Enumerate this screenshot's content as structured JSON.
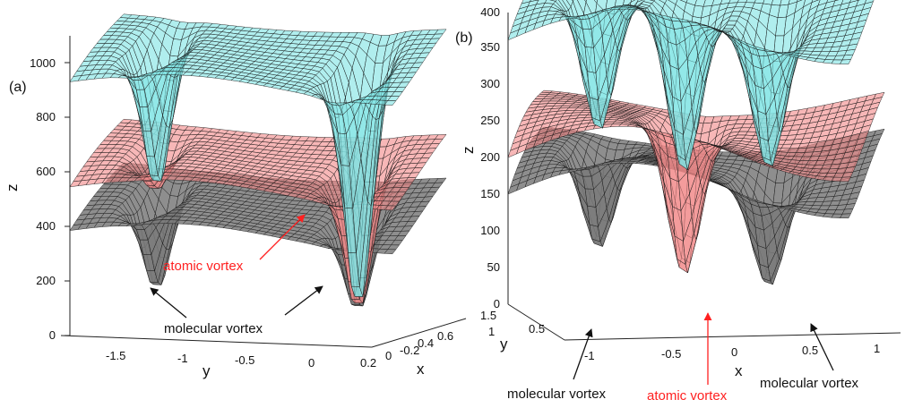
{
  "chart_data": [
    {
      "type": "surface",
      "panel_label": "(a)",
      "zlabel": "z",
      "ylabel": "y",
      "xlabel": "x",
      "z_ticks": [
        "0",
        "200",
        "400",
        "600",
        "800",
        "1000"
      ],
      "y_ticks": [
        "-1.5",
        "-1",
        "-0.5",
        "0"
      ],
      "x_ticks": [
        "0.2",
        "0",
        "-0.2",
        "0.4",
        "0.6"
      ],
      "zlim": [
        0,
        1100
      ],
      "surfaces": [
        {
          "color": "#7fe3e3",
          "base_level": 930,
          "dips": [
            {
              "y": -1.4,
              "min": 400
            },
            {
              "y": 0.1,
              "min": 40
            }
          ]
        },
        {
          "color": "#f28b8b",
          "base_level": 545,
          "dips": [
            {
              "y": -1.4,
              "min": 400
            },
            {
              "y": 0.1,
              "min": 40
            }
          ]
        },
        {
          "color": "#7a7a7a",
          "base_level": 385,
          "dips": [
            {
              "y": -1.4,
              "min": 30
            },
            {
              "y": 0.1,
              "min": 40
            }
          ]
        }
      ],
      "annotations": [
        {
          "text": "atomic vortex",
          "color": "#ff2020"
        },
        {
          "text": "molecular vortex",
          "color": "#111111"
        }
      ]
    },
    {
      "type": "surface",
      "panel_label": "(b)",
      "zlabel": "z",
      "ylabel": "y",
      "xlabel": "x",
      "z_ticks": [
        "0",
        "50",
        "100",
        "150",
        "200",
        "250",
        "300",
        "350",
        "400"
      ],
      "y_ticks": [
        "0.5",
        "1",
        "1.5"
      ],
      "x_ticks": [
        "-1",
        "-0.5",
        "0",
        "0.5",
        "1"
      ],
      "zlim": [
        0,
        400
      ],
      "surfaces": [
        {
          "color": "#7fe3e3",
          "base_level": 360,
          "dips": [
            {
              "x": -0.95,
              "min": 170
            },
            {
              "x": -0.25,
              "min": 140
            },
            {
              "x": 0.45,
              "min": 170
            }
          ]
        },
        {
          "color": "#f28b8b",
          "base_level": 200,
          "dips": [
            {
              "x": -0.25,
              "min": 0
            }
          ]
        },
        {
          "color": "#7a7a7a",
          "base_level": 150,
          "dips": [
            {
              "x": -0.95,
              "min": 10
            },
            {
              "x": 0.45,
              "min": 10
            }
          ]
        }
      ],
      "annotations": [
        {
          "text": "molecular vortex",
          "color": "#111111"
        },
        {
          "text": "atomic vortex",
          "color": "#ff2020"
        },
        {
          "text": "molecular vortex",
          "color": "#111111"
        }
      ]
    }
  ]
}
